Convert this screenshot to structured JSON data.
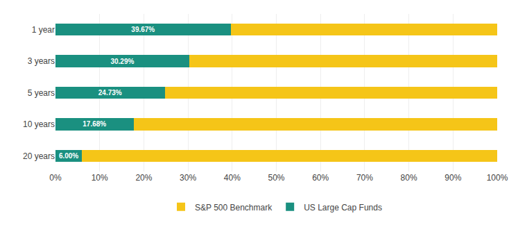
{
  "chart_data": {
    "type": "bar",
    "orientation": "horizontal",
    "stacked": true,
    "categories": [
      "1 year",
      "3 years",
      "5 years",
      "10 years",
      "20 years"
    ],
    "series": [
      {
        "name": "US Large Cap Funds",
        "color": "#1a9080",
        "values": [
          39.67,
          30.29,
          24.73,
          17.68,
          6.0
        ],
        "value_labels": [
          "39.67%",
          "30.29%",
          "24.73%",
          "17.68%",
          "6.00%"
        ]
      },
      {
        "name": "S&P 500 Benchmark",
        "color": "#f5c518",
        "values": [
          60.33,
          69.71,
          75.27,
          82.32,
          94.0
        ]
      }
    ],
    "data_labels": true,
    "xlim": [
      0,
      100
    ],
    "xticks": [
      {
        "value": 0,
        "label": "0%"
      },
      {
        "value": 10,
        "label": "10%"
      },
      {
        "value": 20,
        "label": "20%"
      },
      {
        "value": 30,
        "label": "30%"
      },
      {
        "value": 40,
        "label": "40%"
      },
      {
        "value": 50,
        "label": "50%"
      },
      {
        "value": 60,
        "label": "60%"
      },
      {
        "value": 70,
        "label": "70%"
      },
      {
        "value": 80,
        "label": "80%"
      },
      {
        "value": 90,
        "label": "90%"
      },
      {
        "value": 100,
        "label": "100%"
      }
    ],
    "grid": true,
    "legend": "bottom"
  }
}
